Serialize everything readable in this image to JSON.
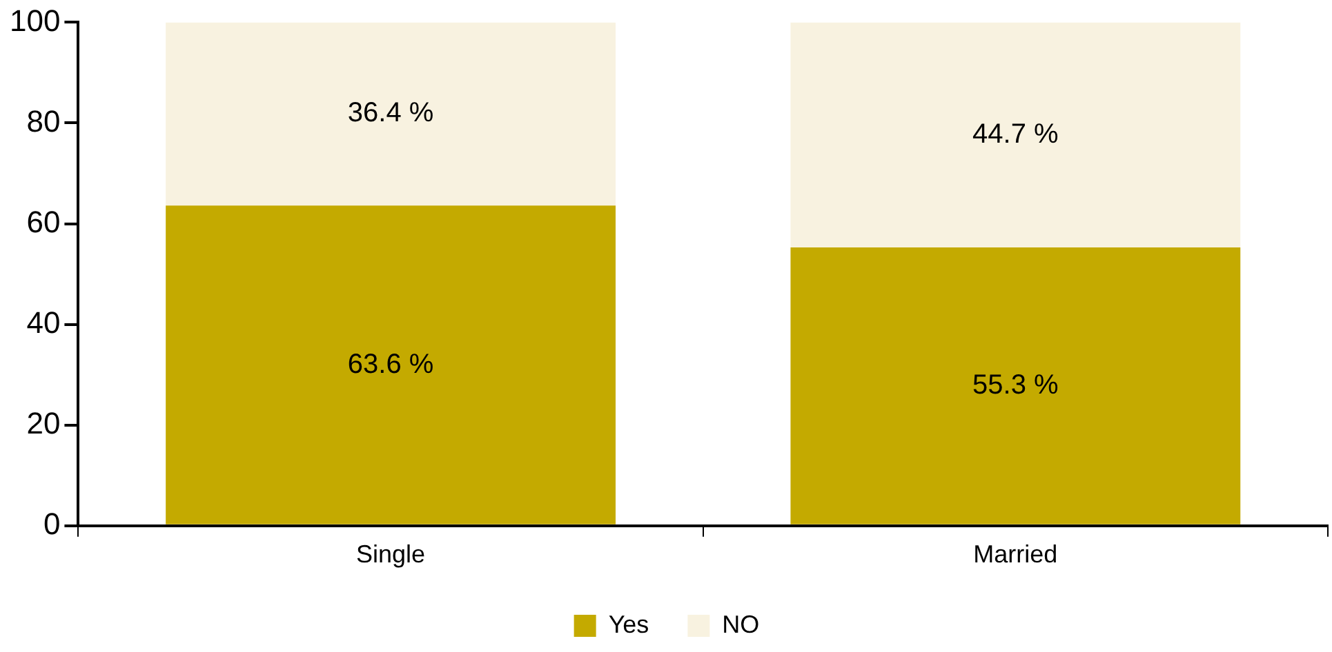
{
  "chart_data": {
    "type": "bar",
    "stacked": true,
    "categories": [
      "Single",
      "Married"
    ],
    "series": [
      {
        "name": "Yes",
        "color": "#c4aa00",
        "values": [
          63.6,
          55.3
        ],
        "value_labels": [
          "63.6 %",
          "55.3 %"
        ]
      },
      {
        "name": "NO",
        "color": "#f8f2e0",
        "values": [
          36.4,
          44.7
        ],
        "value_labels": [
          "36.4 %",
          "44.7 %"
        ]
      }
    ],
    "ylim": [
      0,
      100
    ],
    "yticks": [
      0,
      20,
      40,
      60,
      80,
      100
    ],
    "grid": false,
    "legend": "bottom"
  }
}
